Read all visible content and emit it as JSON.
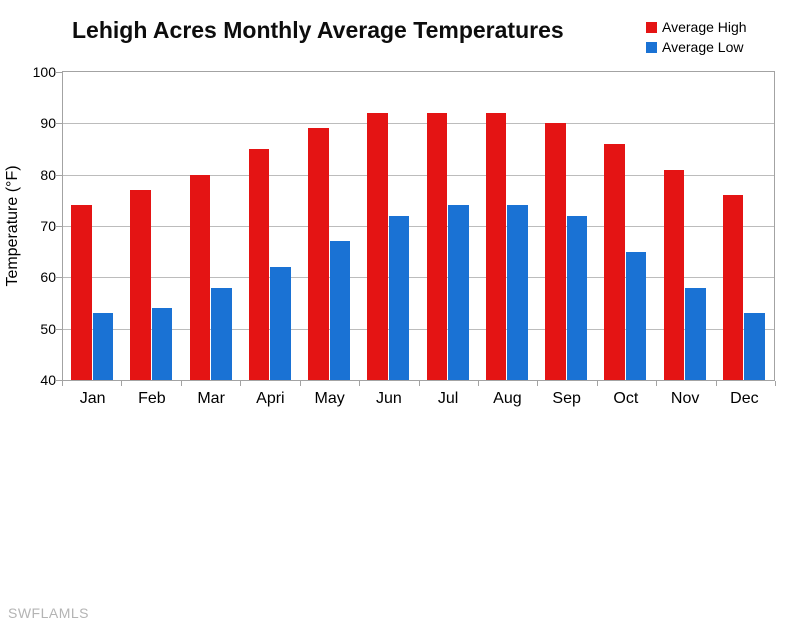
{
  "watermark": "SWFLAMLS",
  "chart_data": {
    "type": "bar",
    "title": "Lehigh Acres Monthly Average Temperatures",
    "categories": [
      "Jan",
      "Feb",
      "Mar",
      "Apri",
      "May",
      "Jun",
      "Jul",
      "Aug",
      "Sep",
      "Oct",
      "Nov",
      "Dec"
    ],
    "series": [
      {
        "name": "Average High",
        "color": "#e41414",
        "values": [
          74,
          77,
          80,
          85,
          89,
          92,
          92,
          92,
          90,
          86,
          81,
          76
        ]
      },
      {
        "name": "Average Low",
        "color": "#1a72d4",
        "values": [
          53,
          54,
          58,
          62,
          67,
          72,
          74,
          74,
          72,
          65,
          58,
          53
        ]
      }
    ],
    "xlabel": "",
    "ylabel": "Temperature (°F)",
    "ylim": [
      40,
      100
    ],
    "ytick_step": 10,
    "grid": true,
    "legend_position": "top-right"
  },
  "colors": {
    "grid": "#bcbcbc",
    "axis": "#a3a3a3",
    "watermark": "#b4b4b4"
  }
}
